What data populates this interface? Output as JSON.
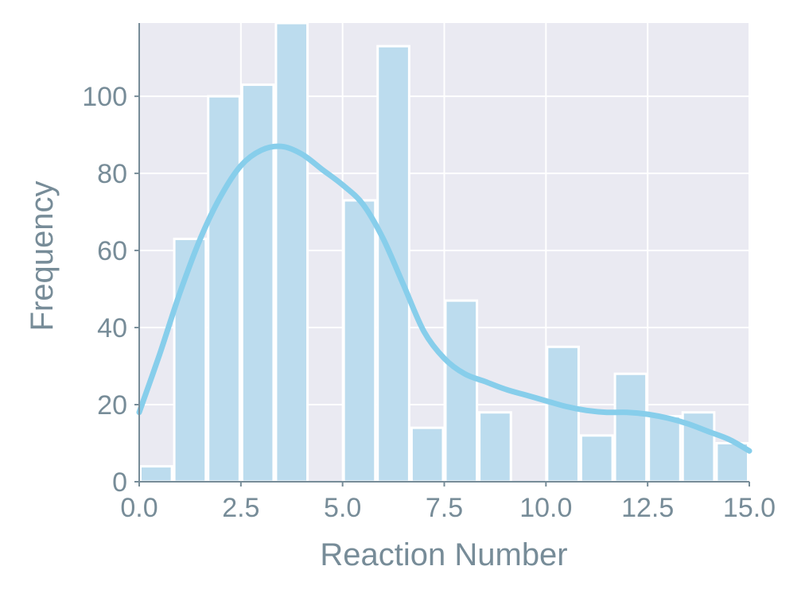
{
  "chart_data": {
    "type": "bar",
    "subtype": "histogram-with-kde",
    "xlabel": "Reaction Number",
    "ylabel": "Frequency",
    "xlim": [
      0,
      15
    ],
    "ylim": [
      0,
      119
    ],
    "xticks": [
      0.0,
      2.5,
      5.0,
      7.5,
      10.0,
      12.5,
      15.0
    ],
    "xtick_labels": [
      "0.0",
      "2.5",
      "5.0",
      "7.5",
      "10.0",
      "12.5",
      "15.0"
    ],
    "yticks": [
      0,
      20,
      40,
      60,
      80,
      100
    ],
    "ytick_labels": [
      "0",
      "20",
      "40",
      "60",
      "80",
      "100"
    ],
    "grid": true,
    "bar_color": "#bcdcee",
    "bar_edge_color": "#ffffff",
    "kde_color": "#87ceeb",
    "background_color": "#eaeaf2",
    "axis_color": "#778c98",
    "bins": [
      {
        "x0": 0.0,
        "x1": 0.833,
        "count": 4
      },
      {
        "x0": 0.833,
        "x1": 1.667,
        "count": 63
      },
      {
        "x0": 1.667,
        "x1": 2.5,
        "count": 100
      },
      {
        "x0": 2.5,
        "x1": 3.333,
        "count": 103
      },
      {
        "x0": 3.333,
        "x1": 4.167,
        "count": 120
      },
      {
        "x0": 4.167,
        "x1": 5.0,
        "count": 0
      },
      {
        "x0": 5.0,
        "x1": 5.833,
        "count": 73
      },
      {
        "x0": 5.833,
        "x1": 6.667,
        "count": 113
      },
      {
        "x0": 6.667,
        "x1": 7.5,
        "count": 14
      },
      {
        "x0": 7.5,
        "x1": 8.333,
        "count": 47
      },
      {
        "x0": 8.333,
        "x1": 9.167,
        "count": 18
      },
      {
        "x0": 9.167,
        "x1": 10.0,
        "count": 0
      },
      {
        "x0": 10.0,
        "x1": 10.833,
        "count": 35
      },
      {
        "x0": 10.833,
        "x1": 11.667,
        "count": 12
      },
      {
        "x0": 11.667,
        "x1": 12.5,
        "count": 28
      },
      {
        "x0": 12.5,
        "x1": 13.333,
        "count": 17
      },
      {
        "x0": 13.333,
        "x1": 14.167,
        "count": 18
      },
      {
        "x0": 14.167,
        "x1": 15.0,
        "count": 10
      }
    ],
    "kde": {
      "x": [
        0.0,
        0.5,
        1.0,
        1.5,
        2.0,
        2.5,
        3.0,
        3.5,
        4.0,
        4.5,
        5.0,
        5.5,
        6.0,
        6.5,
        7.0,
        7.5,
        8.0,
        8.5,
        9.0,
        9.5,
        10.0,
        10.5,
        11.0,
        11.5,
        12.0,
        12.5,
        13.0,
        13.5,
        14.0,
        14.5,
        15.0
      ],
      "y": [
        18,
        33,
        49,
        63,
        74,
        82,
        86,
        87,
        85,
        81,
        77,
        72,
        63,
        51,
        39,
        32,
        28,
        26,
        24,
        22.5,
        21,
        19.5,
        18.5,
        18,
        18,
        17.5,
        16.5,
        15,
        13,
        11,
        8
      ]
    }
  }
}
